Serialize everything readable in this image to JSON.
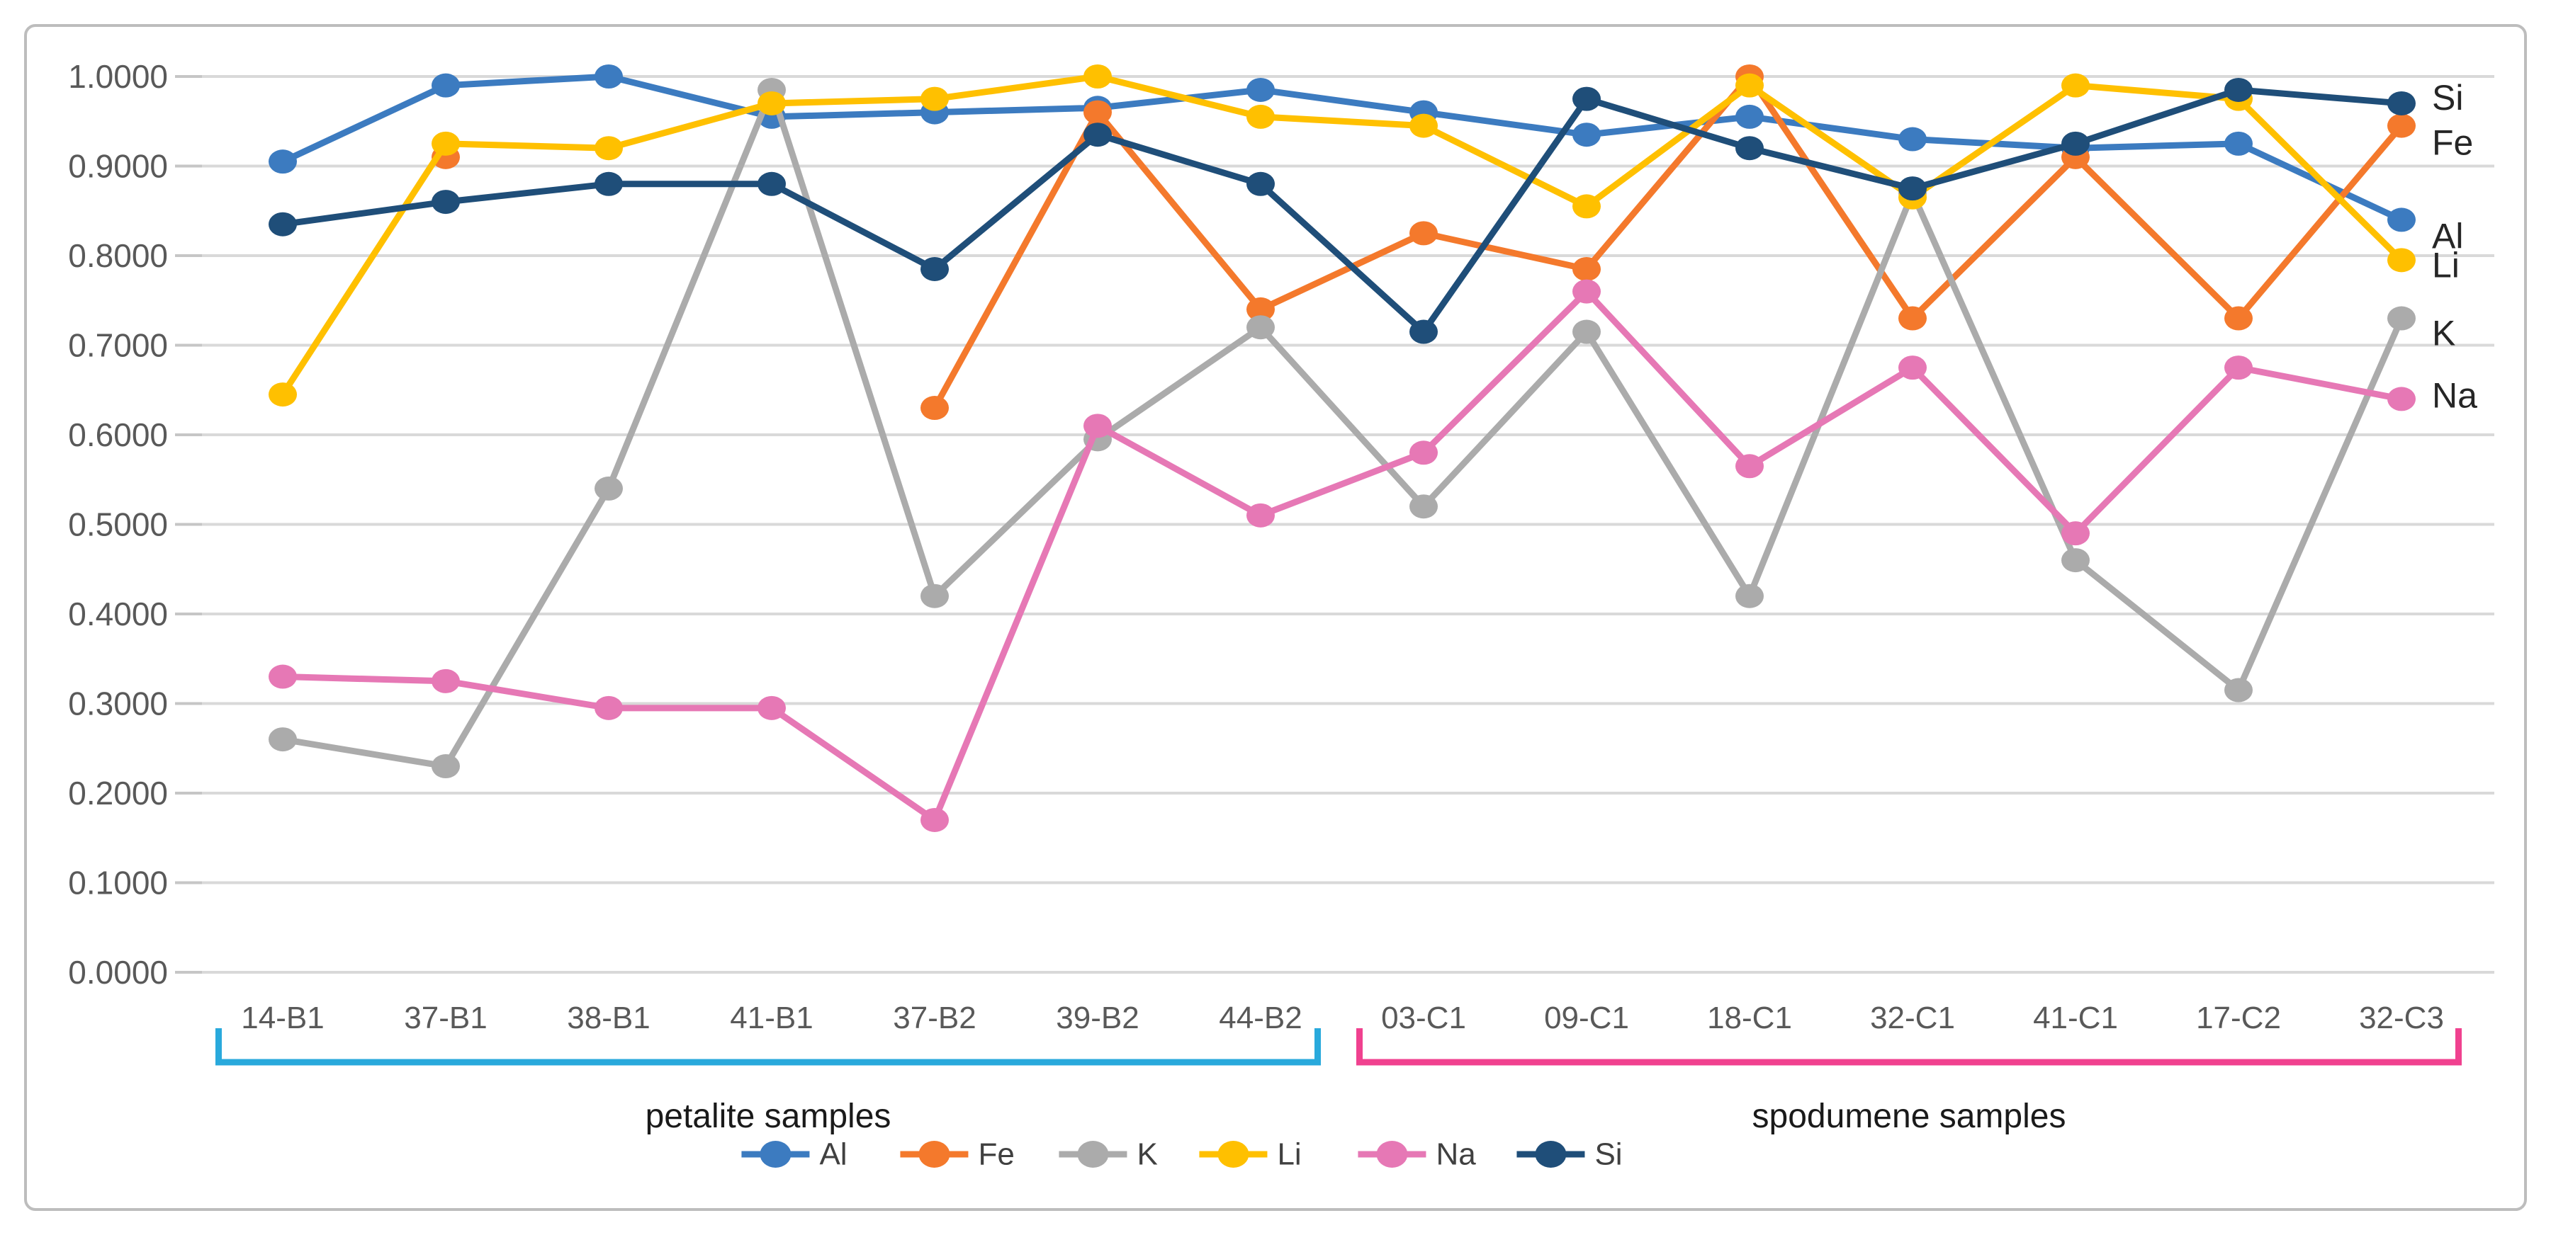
{
  "figure": {
    "background": "#ffffff",
    "border_color": "#bdbdbd"
  },
  "chart_data": {
    "type": "line",
    "title": "",
    "xlabel": "",
    "ylabel": "",
    "ylim": [
      0.0,
      1.0
    ],
    "ytick_step": 0.1,
    "ytick_labels": [
      "0.0000",
      "0.1000",
      "0.2000",
      "0.3000",
      "0.4000",
      "0.5000",
      "0.6000",
      "0.7000",
      "0.8000",
      "0.9000",
      "1.0000"
    ],
    "grid": true,
    "legend_position": "bottom",
    "categories": [
      "14-B1",
      "37-B1",
      "38-B1",
      "41-B1",
      "37-B2",
      "39-B2",
      "44-B2",
      "03-C1",
      "09-C1",
      "18-C1",
      "32-C1",
      "41-C1",
      "17-C2",
      "32-C3"
    ],
    "series": [
      {
        "name": "Al",
        "color": "#3c7bc0",
        "values": [
          0.905,
          0.99,
          1.0,
          0.955,
          0.96,
          0.965,
          0.985,
          0.96,
          0.935,
          0.955,
          0.93,
          0.92,
          0.925,
          0.84
        ]
      },
      {
        "name": "Fe",
        "color": "#f4792c",
        "values": [
          null,
          0.91,
          null,
          null,
          0.63,
          0.96,
          0.74,
          0.825,
          0.785,
          1.0,
          0.73,
          0.91,
          0.73,
          0.945
        ]
      },
      {
        "name": "K",
        "color": "#ababab",
        "values": [
          0.26,
          0.23,
          0.54,
          0.985,
          0.42,
          0.595,
          0.72,
          0.52,
          0.715,
          0.42,
          0.87,
          0.46,
          0.315,
          0.73
        ]
      },
      {
        "name": "Li",
        "color": "#ffc000",
        "values": [
          0.645,
          0.925,
          0.92,
          0.97,
          0.975,
          1.0,
          0.955,
          0.945,
          0.855,
          0.99,
          0.865,
          0.99,
          0.975,
          0.795
        ]
      },
      {
        "name": "Na",
        "color": "#e678b5",
        "values": [
          0.33,
          0.325,
          0.295,
          0.295,
          0.17,
          0.61,
          0.51,
          0.58,
          0.76,
          0.565,
          0.675,
          0.49,
          0.675,
          0.64
        ]
      },
      {
        "name": "Si",
        "color": "#1f4e79",
        "values": [
          0.835,
          0.86,
          0.88,
          0.88,
          0.785,
          0.935,
          0.88,
          0.715,
          0.975,
          0.92,
          0.875,
          0.925,
          0.985,
          0.97
        ]
      }
    ],
    "right_labels": [
      "Si",
      "Fe",
      "Al",
      "Li",
      "K",
      "Na"
    ],
    "legend": [
      "Al",
      "Fe",
      "K",
      "Li",
      "Na",
      "Si"
    ],
    "groups": [
      {
        "label": "petalite samples",
        "from": "14-B1",
        "to": "44-B2",
        "color": "#29a9dc"
      },
      {
        "label": "spodumene samples",
        "from": "03-C1",
        "to": "32-C3",
        "color": "#f0418f"
      }
    ],
    "text_colors": {
      "axis": "#595959",
      "group_label": "#1a1a1a",
      "legend": "#404040",
      "right_label": "#262626"
    },
    "grid_color": "#d9d9d9"
  }
}
